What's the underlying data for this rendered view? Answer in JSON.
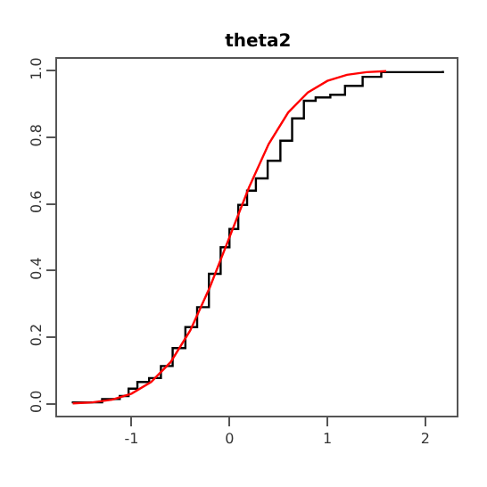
{
  "chart_data": {
    "type": "line",
    "title": "theta2",
    "xlim": [
      -1.76,
      2.32
    ],
    "ylim": [
      -0.036,
      1.036
    ],
    "xticks": [
      -1,
      0,
      1,
      2
    ],
    "yticks": [
      {
        "value": 0,
        "label": "0.0"
      },
      {
        "value": 0.2,
        "label": "0.2"
      },
      {
        "value": 0.4,
        "label": "0.4"
      },
      {
        "value": 0.6,
        "label": "0.6"
      },
      {
        "value": 0.8,
        "label": "0.8"
      },
      {
        "value": 1,
        "label": "1.0"
      }
    ],
    "marker": "none",
    "series": [
      {
        "type": "step",
        "color": "#000000",
        "x": [
          -1.61,
          -1.3,
          -1.12,
          -1.03,
          -0.94,
          -0.82,
          -0.7,
          -0.58,
          -0.45,
          -0.33,
          -0.21,
          -0.09,
          0,
          0.09,
          0.18,
          0.27,
          0.39,
          0.52,
          0.64,
          0.76,
          0.88,
          1.03,
          1.18,
          1.36,
          1.55,
          2.18
        ],
        "values": [
          0.004,
          0.014,
          0.023,
          0.045,
          0.065,
          0.077,
          0.113,
          0.167,
          0.23,
          0.29,
          0.39,
          0.47,
          0.525,
          0.597,
          0.64,
          0.677,
          0.73,
          0.79,
          0.857,
          0.91,
          0.92,
          0.928,
          0.955,
          0.982,
          0.996,
          1.0
        ]
      },
      {
        "color": "#ff0000",
        "x": [
          -1.6,
          -1.4,
          -1.2,
          -1.0,
          -0.8,
          -0.6,
          -0.4,
          -0.2,
          0,
          0.2,
          0.4,
          0.6,
          0.8,
          1.0,
          1.2,
          1.4,
          1.6
        ],
        "values": [
          0.001,
          0.004,
          0.012,
          0.03,
          0.065,
          0.125,
          0.22,
          0.35,
          0.5,
          0.65,
          0.78,
          0.875,
          0.935,
          0.97,
          0.988,
          0.996,
          0.999
        ]
      }
    ]
  }
}
